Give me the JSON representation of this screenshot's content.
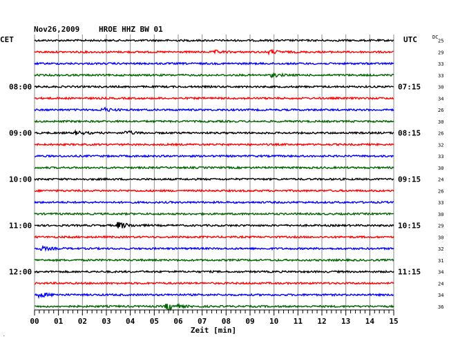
{
  "header": {
    "date": "Nov26,2009",
    "station": "HROE HHZ BW 01",
    "left_zone": "CET",
    "right_zone": "UTC",
    "dc_label": "DC"
  },
  "chart_data": {
    "type": "line",
    "title": "Nov26,2009   HROE HHZ BW 01",
    "xlabel": "Zeit [min]",
    "xlim": [
      0,
      15
    ],
    "x_ticks": [
      "00",
      "01",
      "02",
      "03",
      "04",
      "05",
      "06",
      "07",
      "08",
      "09",
      "10",
      "11",
      "12",
      "13",
      "14",
      "15"
    ],
    "left_hour_labels": [
      {
        "trace": 4,
        "text": "08:00"
      },
      {
        "trace": 8,
        "text": "09:00"
      },
      {
        "trace": 12,
        "text": "10:00"
      },
      {
        "trace": 16,
        "text": "11:00"
      },
      {
        "trace": 20,
        "text": "12:00"
      }
    ],
    "right_hour_labels": [
      {
        "trace": 4,
        "text": "07:15"
      },
      {
        "trace": 8,
        "text": "08:15"
      },
      {
        "trace": 12,
        "text": "09:15"
      },
      {
        "trace": 16,
        "text": "10:15"
      },
      {
        "trace": 20,
        "text": "11:15"
      }
    ],
    "trace_colors": [
      "#000000",
      "#ff0000",
      "#0000ff",
      "#006400"
    ],
    "dc_offsets": [
      "25",
      "29",
      "33",
      "33",
      "30",
      "34",
      "26",
      "30",
      "26",
      "32",
      "33",
      "30",
      "24",
      "26",
      "33",
      "30",
      "29",
      "30",
      "32",
      "31",
      "34",
      "24",
      "34",
      "36"
    ],
    "events": [
      {
        "trace": 1,
        "minute": 7.6,
        "amplitude": 1.5
      },
      {
        "trace": 1,
        "minute": 9.9,
        "amplitude": 2
      },
      {
        "trace": 3,
        "minute": 10.0,
        "amplitude": 2
      },
      {
        "trace": 6,
        "minute": 2.9,
        "amplitude": 2.5
      },
      {
        "trace": 8,
        "minute": 1.8,
        "amplitude": 2
      },
      {
        "trace": 8,
        "minute": 3.9,
        "amplitude": 2
      },
      {
        "trace": 16,
        "minute": 3.6,
        "amplitude": 4
      },
      {
        "trace": 18,
        "minute": 0.4,
        "amplitude": 2
      },
      {
        "trace": 22,
        "minute": 0.3,
        "amplitude": 2.5
      },
      {
        "trace": 23,
        "minute": 5.6,
        "amplitude": 5
      }
    ]
  }
}
